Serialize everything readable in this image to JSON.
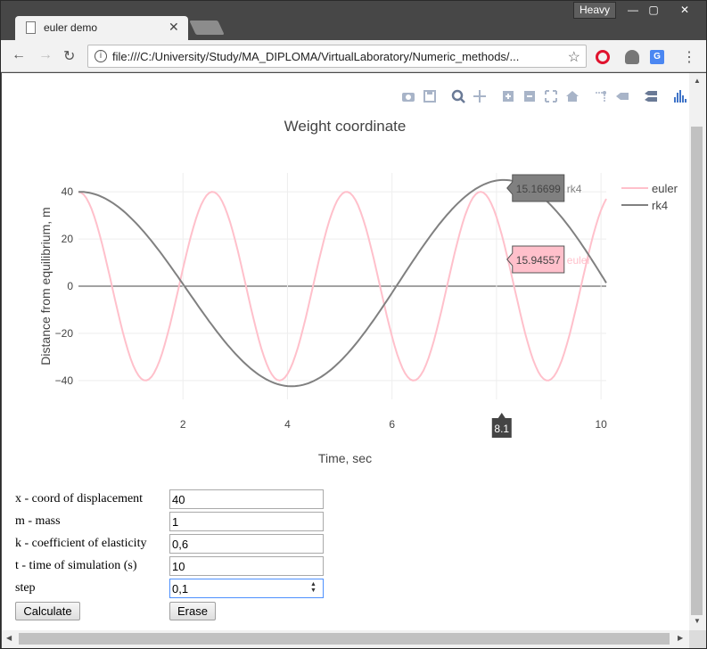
{
  "browser": {
    "profile_badge": "Heavy",
    "tab_title": "euler demo",
    "url": "file:///C:/University/Study/MA_DIPLOMA/VirtualLaboratory/Numeric_methods/...",
    "window_buttons": {
      "minimize": "—",
      "maximize": "▢",
      "close": "✕"
    }
  },
  "modebar": {
    "icons": [
      "camera-icon",
      "save-icon",
      "zoom-icon",
      "pan-icon",
      "zoom-in-icon",
      "zoom-out-icon",
      "autoscale-icon",
      "reset-axes-icon",
      "spike-lines-icon",
      "hover-closest-icon",
      "hover-compare-icon",
      "plotly-logo-icon"
    ]
  },
  "chart_data": {
    "type": "line",
    "title": "Weight coordinate",
    "xlabel": "Time, sec",
    "ylabel": "Distance from equilibrium, m",
    "xlim": [
      0,
      10.1
    ],
    "ylim": [
      -48,
      48
    ],
    "x_ticks": [
      2,
      4,
      6,
      8,
      10
    ],
    "y_ticks": [
      40,
      20,
      0,
      -20,
      -40
    ],
    "grid": true,
    "legend_position": "top-right",
    "series": [
      {
        "name": "euler",
        "color": "#ffc0cb",
        "amplitude": 40,
        "omega": 2.4498,
        "description_x": "0..10.1 step 0.1"
      },
      {
        "name": "rk4",
        "color": "#808080",
        "amplitude": 40,
        "omega": 0.7746,
        "growth": 1.06
      }
    ],
    "hover": {
      "x_label": "8.1",
      "rk4_label": "15.16699",
      "euler_label": "15.94557",
      "rk4_name": "rk4",
      "euler_name": "euler"
    }
  },
  "form": {
    "rows": [
      {
        "label": "x - coord of displacement",
        "value": "40"
      },
      {
        "label": "m - mass",
        "value": "1"
      },
      {
        "label": "k - coefficient of elasticity",
        "value": "0,6"
      },
      {
        "label": "t - time of simulation (s)",
        "value": "10"
      },
      {
        "label": "step",
        "value": "0,1"
      }
    ],
    "calculate_label": "Calculate",
    "erase_label": "Erase"
  }
}
